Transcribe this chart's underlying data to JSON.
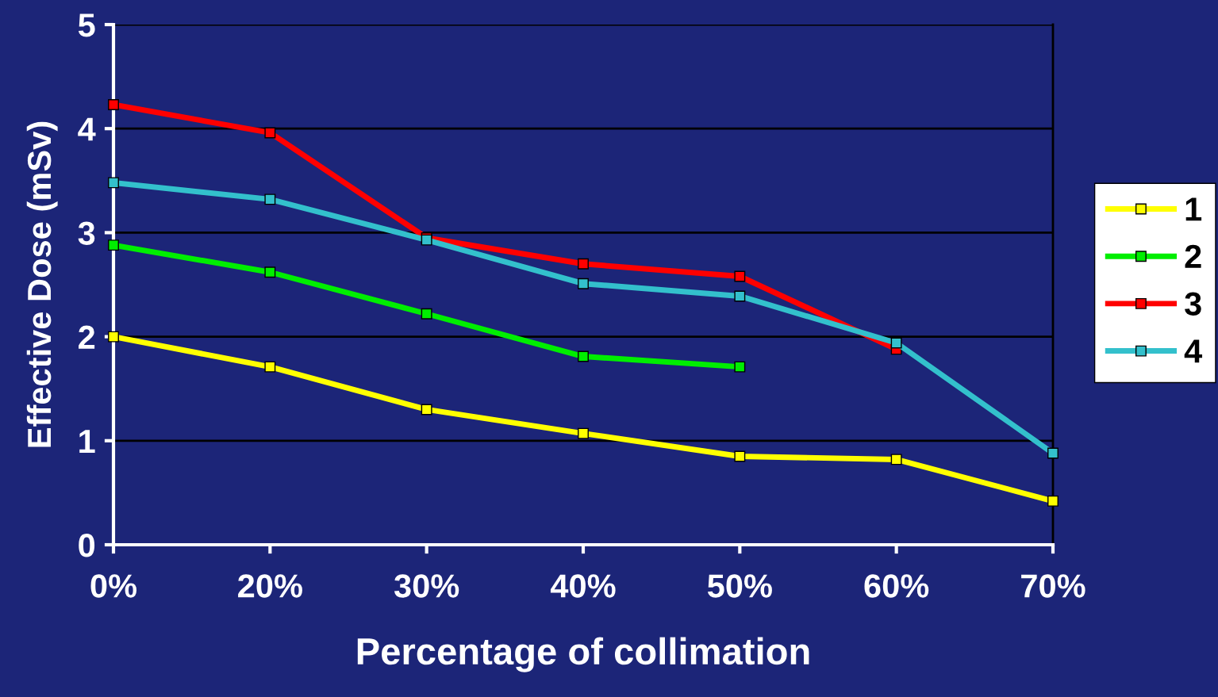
{
  "chart_data": {
    "type": "line",
    "xlabel": "Percentage of collimation",
    "ylabel": "Effective Dose (mSv)",
    "categories": [
      "0%",
      "20%",
      "30%",
      "40%",
      "50%",
      "60%",
      "70%"
    ],
    "series": [
      {
        "name": "1",
        "color": "#ffff00",
        "values": [
          2.0,
          1.71,
          1.3,
          1.07,
          0.85,
          0.82,
          0.42
        ]
      },
      {
        "name": "2",
        "color": "#00ee00",
        "values": [
          2.88,
          2.62,
          2.22,
          1.81,
          1.71,
          null,
          null
        ]
      },
      {
        "name": "3",
        "color": "#ff0000",
        "values": [
          4.23,
          3.96,
          2.95,
          2.7,
          2.58,
          1.88,
          null
        ]
      },
      {
        "name": "4",
        "color": "#33c0cc",
        "values": [
          3.48,
          3.32,
          2.93,
          2.51,
          2.39,
          1.94,
          0.88
        ]
      }
    ],
    "ylim": [
      0,
      5
    ],
    "yticks": [
      0,
      1,
      2,
      3,
      4,
      5
    ],
    "grid": "y",
    "legend": "right",
    "marker": "square",
    "line_style": "solid"
  }
}
